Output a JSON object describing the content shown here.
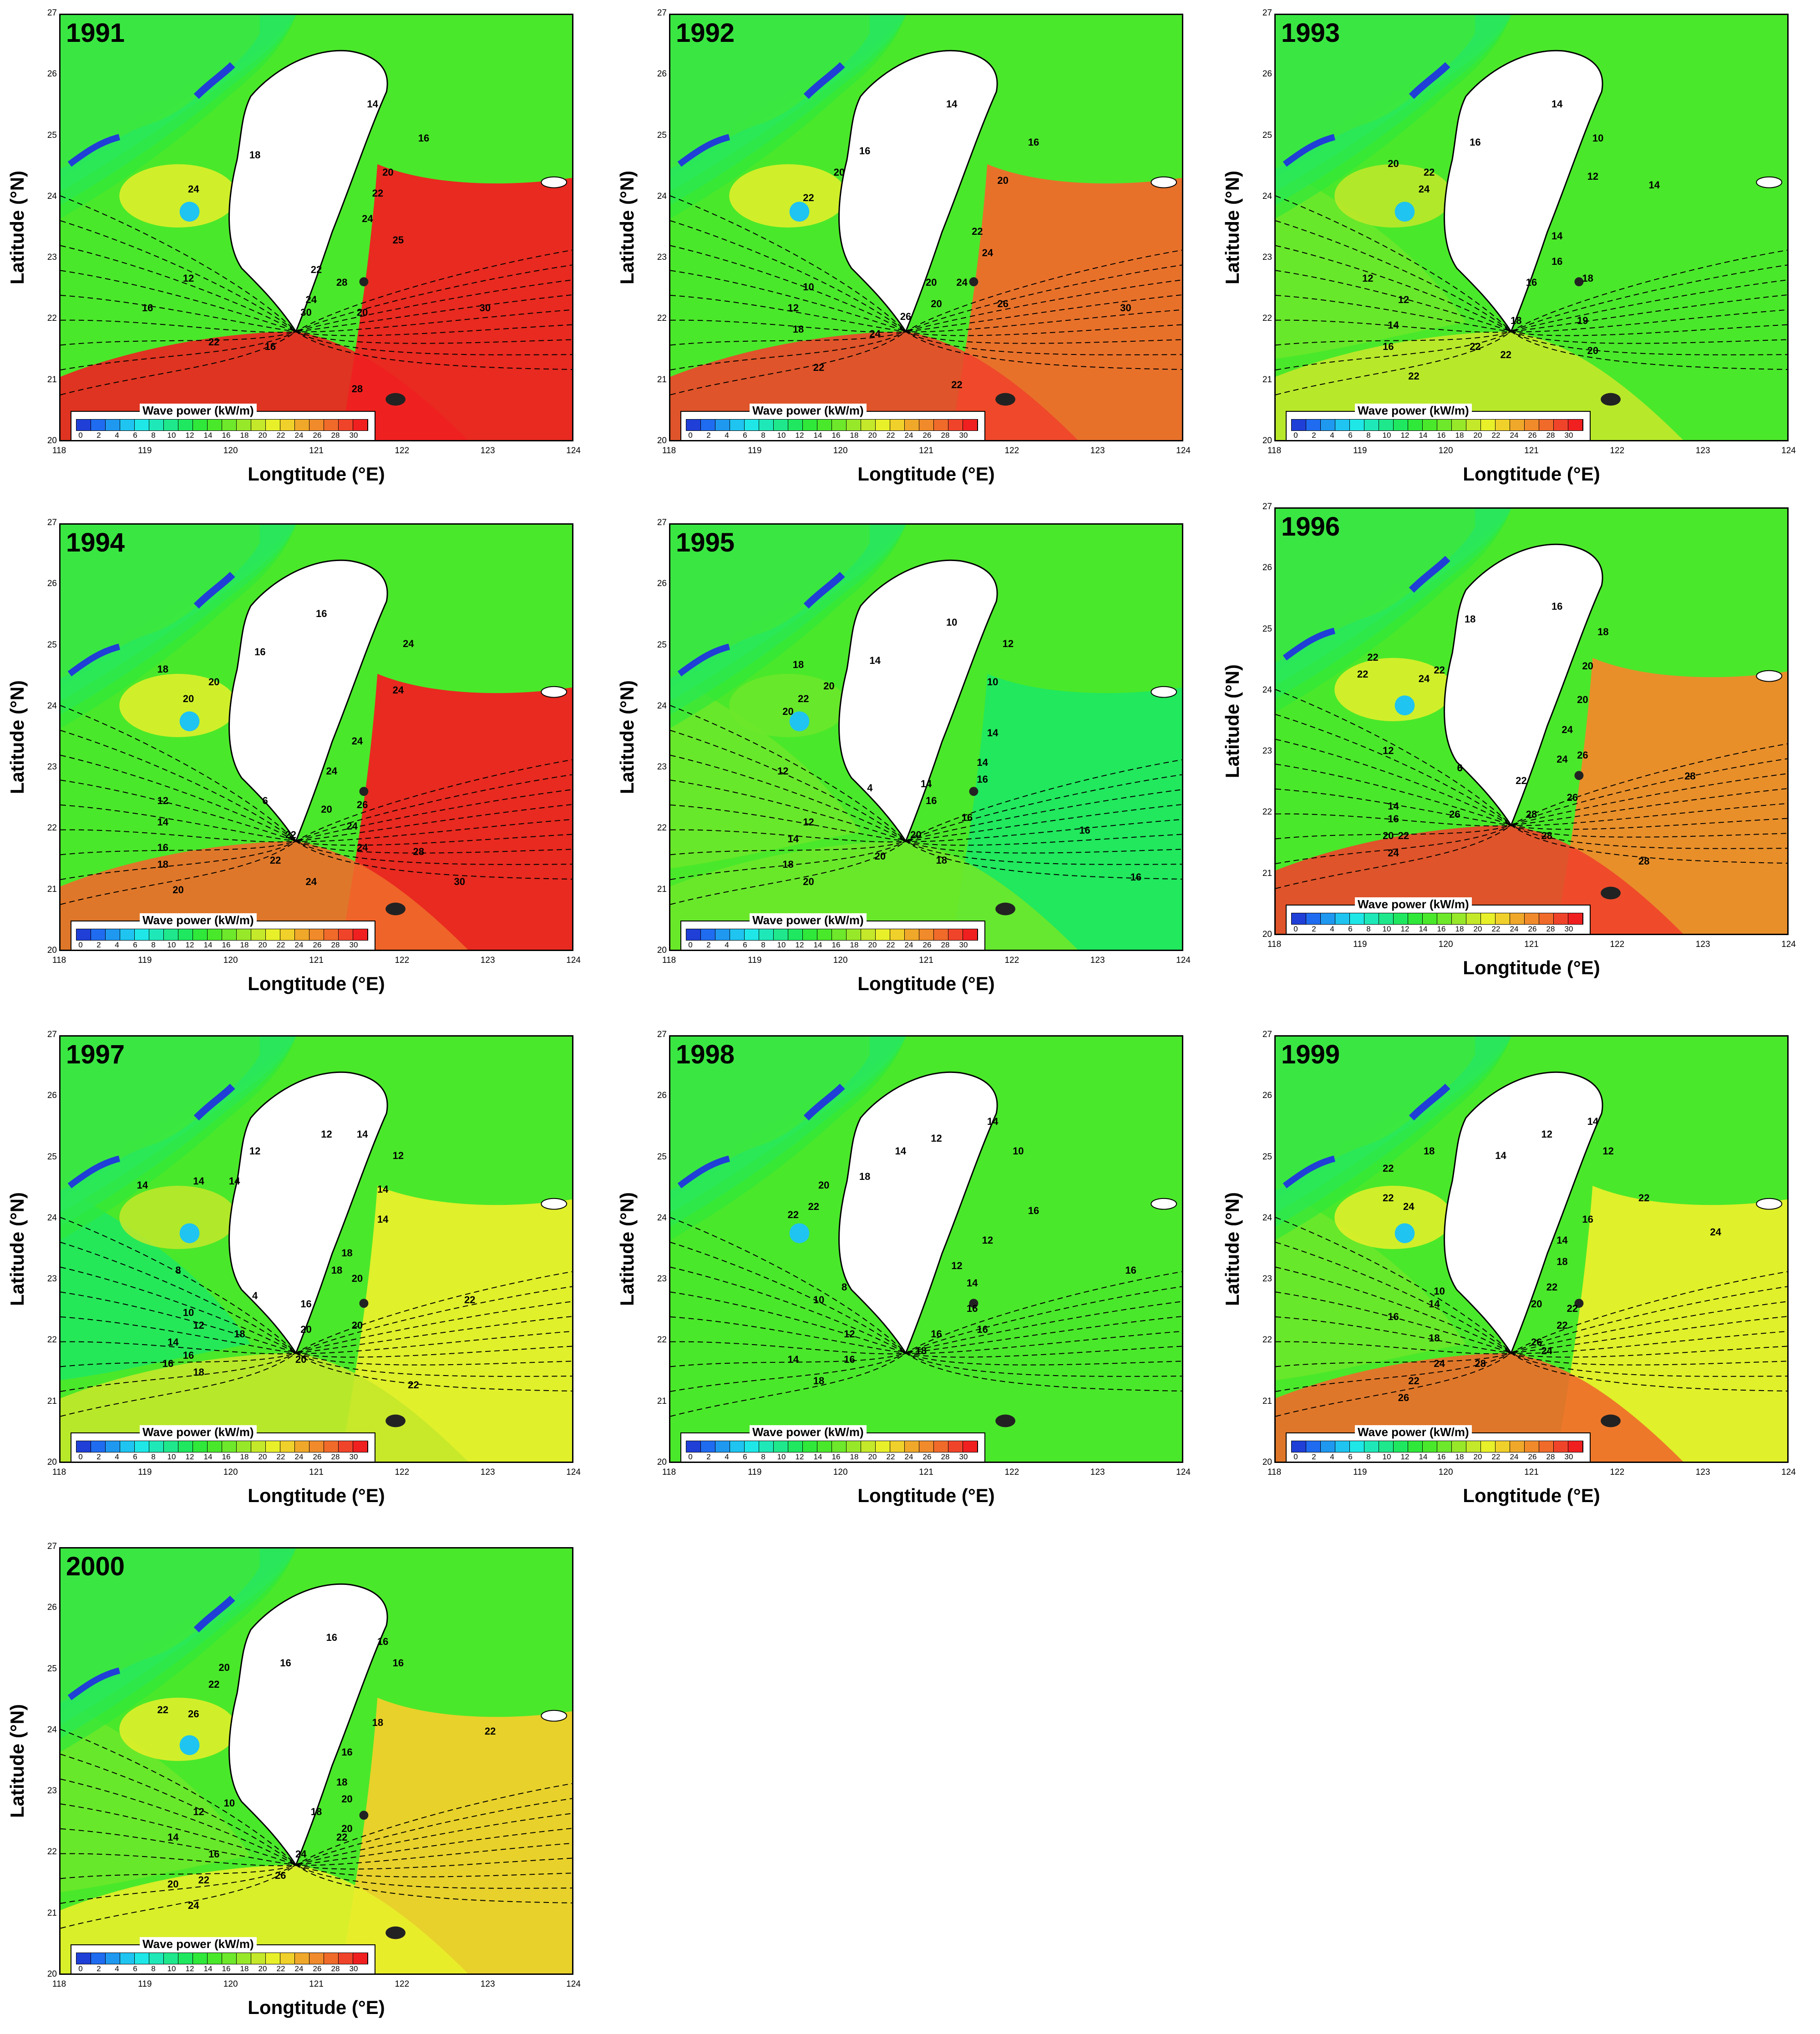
{
  "colors": {
    "scale": [
      "#1f3fd6",
      "#1f6cf0",
      "#1f98f0",
      "#1fc4f0",
      "#1fe7e7",
      "#1fe8b8",
      "#1fe88c",
      "#1fe860",
      "#2fe83a",
      "#4ae82a",
      "#6de82a",
      "#98e82a",
      "#c4e82a",
      "#e8f02a",
      "#f0d02a",
      "#f0a82a",
      "#f08a2a",
      "#f06a2a",
      "#f0442a",
      "#f02020"
    ],
    "land": "#ffffff",
    "coast_blue": "#1f3fd6"
  },
  "legend": {
    "title": "Wave power (kW/m)",
    "ticks": [
      "0",
      "2",
      "4",
      "6",
      "8",
      "10",
      "12",
      "14",
      "16",
      "18",
      "20",
      "22",
      "24",
      "26",
      "28",
      "30"
    ]
  },
  "axes": {
    "xlabel": "Longtitude (°E)",
    "ylabel": "Latitude (°N)",
    "xticks": [
      "118",
      "119",
      "120",
      "121",
      "122",
      "123",
      "124"
    ],
    "yticks": [
      "27",
      "26",
      "25",
      "24",
      "23",
      "22",
      "21",
      "20"
    ]
  },
  "panels": [
    {
      "year": "1991",
      "east_level": 19,
      "south_level": 19,
      "strait_level": 9,
      "labels": [
        [
          "14",
          "61%",
          "21%"
        ],
        [
          "16",
          "71%",
          "29%"
        ],
        [
          "18",
          "38%",
          "33%"
        ],
        [
          "20",
          "64%",
          "37%"
        ],
        [
          "24",
          "26%",
          "41%"
        ],
        [
          "22",
          "62%",
          "42%"
        ],
        [
          "24",
          "60%",
          "48%"
        ],
        [
          "25",
          "66%",
          "53%"
        ],
        [
          "22",
          "50%",
          "60%"
        ],
        [
          "28",
          "55%",
          "63%"
        ],
        [
          "24",
          "49%",
          "67%"
        ],
        [
          "20",
          "59%",
          "70%"
        ],
        [
          "30",
          "48%",
          "70%"
        ],
        [
          "30",
          "83%",
          "69%"
        ],
        [
          "12",
          "25%",
          "62%"
        ],
        [
          "16",
          "17%",
          "69%"
        ],
        [
          "22",
          "30%",
          "77%"
        ],
        [
          "16",
          "41%",
          "78%"
        ],
        [
          "28",
          "58%",
          "88%"
        ]
      ]
    },
    {
      "year": "1992",
      "east_level": 17,
      "south_level": 18,
      "strait_level": 9,
      "labels": [
        [
          "14",
          "55%",
          "21%"
        ],
        [
          "16",
          "71%",
          "30%"
        ],
        [
          "16",
          "38%",
          "32%"
        ],
        [
          "20",
          "33%",
          "37%"
        ],
        [
          "20",
          "65%",
          "39%"
        ],
        [
          "22",
          "27%",
          "43%"
        ],
        [
          "22",
          "60%",
          "51%"
        ],
        [
          "24",
          "62%",
          "56%"
        ],
        [
          "20",
          "51%",
          "63%"
        ],
        [
          "24",
          "57%",
          "63%"
        ],
        [
          "20",
          "52%",
          "68%"
        ],
        [
          "26",
          "65%",
          "68%"
        ],
        [
          "30",
          "89%",
          "69%"
        ],
        [
          "10",
          "27%",
          "64%"
        ],
        [
          "12",
          "24%",
          "69%"
        ],
        [
          "18",
          "25%",
          "74%"
        ],
        [
          "24",
          "40%",
          "75%"
        ],
        [
          "26",
          "46%",
          "71%"
        ],
        [
          "22",
          "29%",
          "83%"
        ],
        [
          "22",
          "56%",
          "87%"
        ]
      ]
    },
    {
      "year": "1993",
      "east_level": 9,
      "south_level": 12,
      "strait_level": 10,
      "labels": [
        [
          "14",
          "55%",
          "21%"
        ],
        [
          "10",
          "63%",
          "29%"
        ],
        [
          "16",
          "39%",
          "30%"
        ],
        [
          "20",
          "23%",
          "35%"
        ],
        [
          "22",
          "30%",
          "37%"
        ],
        [
          "24",
          "29%",
          "41%"
        ],
        [
          "12",
          "62%",
          "38%"
        ],
        [
          "14",
          "74%",
          "40%"
        ],
        [
          "14",
          "55%",
          "52%"
        ],
        [
          "16",
          "55%",
          "58%"
        ],
        [
          "18",
          "61%",
          "62%"
        ],
        [
          "16",
          "50%",
          "63%"
        ],
        [
          "12",
          "18%",
          "62%"
        ],
        [
          "12",
          "25%",
          "67%"
        ],
        [
          "14",
          "23%",
          "73%"
        ],
        [
          "18",
          "47%",
          "72%"
        ],
        [
          "16",
          "22%",
          "78%"
        ],
        [
          "22",
          "39%",
          "78%"
        ],
        [
          "22",
          "45%",
          "80%"
        ],
        [
          "19",
          "60%",
          "72%"
        ],
        [
          "20",
          "62%",
          "79%"
        ],
        [
          "22",
          "27%",
          "85%"
        ]
      ]
    },
    {
      "year": "1994",
      "east_level": 19,
      "south_level": 17,
      "strait_level": 9,
      "labels": [
        [
          "16",
          "51%",
          "21%"
        ],
        [
          "16",
          "39%",
          "30%"
        ],
        [
          "24",
          "68%",
          "28%"
        ],
        [
          "18",
          "20%",
          "34%"
        ],
        [
          "20",
          "30%",
          "37%"
        ],
        [
          "20",
          "25%",
          "41%"
        ],
        [
          "24",
          "66%",
          "39%"
        ],
        [
          "24",
          "58%",
          "51%"
        ],
        [
          "24",
          "53%",
          "58%"
        ],
        [
          "20",
          "52%",
          "67%"
        ],
        [
          "26",
          "59%",
          "66%"
        ],
        [
          "22",
          "45%",
          "73%"
        ],
        [
          "24",
          "57%",
          "71%"
        ],
        [
          "24",
          "59%",
          "76%"
        ],
        [
          "28",
          "70%",
          "77%"
        ],
        [
          "30",
          "78%",
          "84%"
        ],
        [
          "12",
          "20%",
          "65%"
        ],
        [
          "14",
          "20%",
          "70%"
        ],
        [
          "16",
          "20%",
          "76%"
        ],
        [
          "18",
          "20%",
          "80%"
        ],
        [
          "20",
          "23%",
          "86%"
        ],
        [
          "6",
          "40%",
          "65%"
        ],
        [
          "24",
          "49%",
          "84%"
        ],
        [
          "22",
          "42%",
          "79%"
        ]
      ]
    },
    {
      "year": "1995",
      "east_level": 7,
      "south_level": 10,
      "strait_level": 10,
      "labels": [
        [
          "10",
          "55%",
          "23%"
        ],
        [
          "12",
          "66%",
          "28%"
        ],
        [
          "10",
          "63%",
          "37%"
        ],
        [
          "14",
          "40%",
          "32%"
        ],
        [
          "18",
          "25%",
          "33%"
        ],
        [
          "20",
          "31%",
          "38%"
        ],
        [
          "22",
          "26%",
          "41%"
        ],
        [
          "20",
          "23%",
          "44%"
        ],
        [
          "14",
          "63%",
          "49%"
        ],
        [
          "14",
          "61%",
          "56%"
        ],
        [
          "16",
          "61%",
          "60%"
        ],
        [
          "16",
          "58%",
          "69%"
        ],
        [
          "14",
          "50%",
          "61%"
        ],
        [
          "16",
          "51%",
          "65%"
        ],
        [
          "12",
          "22%",
          "58%"
        ],
        [
          "4",
          "39%",
          "62%"
        ],
        [
          "12",
          "27%",
          "70%"
        ],
        [
          "14",
          "24%",
          "74%"
        ],
        [
          "18",
          "23%",
          "80%"
        ],
        [
          "20",
          "27%",
          "84%"
        ],
        [
          "20",
          "41%",
          "78%"
        ],
        [
          "20",
          "48%",
          "73%"
        ],
        [
          "18",
          "53%",
          "79%"
        ],
        [
          "16",
          "81%",
          "72%"
        ],
        [
          "16",
          "91%",
          "83%"
        ]
      ]
    },
    {
      "year": "1996",
      "east_level": 16,
      "south_level": 18,
      "strait_level": 9,
      "labels": [
        [
          "16",
          "55%",
          "23%"
        ],
        [
          "18",
          "38%",
          "26%"
        ],
        [
          "18",
          "64%",
          "29%"
        ],
        [
          "22",
          "19%",
          "35%"
        ],
        [
          "24",
          "29%",
          "40%"
        ],
        [
          "22",
          "32%",
          "38%"
        ],
        [
          "22",
          "17%",
          "39%"
        ],
        [
          "20",
          "61%",
          "37%"
        ],
        [
          "20",
          "60%",
          "45%"
        ],
        [
          "24",
          "57%",
          "52%"
        ],
        [
          "24",
          "56%",
          "59%"
        ],
        [
          "26",
          "60%",
          "58%"
        ],
        [
          "22",
          "48%",
          "64%"
        ],
        [
          "26",
          "58%",
          "68%"
        ],
        [
          "28",
          "81%",
          "63%"
        ],
        [
          "28",
          "50%",
          "72%"
        ],
        [
          "28",
          "53%",
          "77%"
        ],
        [
          "28",
          "72%",
          "83%"
        ],
        [
          "12",
          "22%",
          "57%"
        ],
        [
          "6",
          "36%",
          "61%"
        ],
        [
          "14",
          "23%",
          "70%"
        ],
        [
          "16",
          "23%",
          "73%"
        ],
        [
          "20",
          "22%",
          "77%"
        ],
        [
          "22",
          "25%",
          "77%"
        ],
        [
          "26",
          "35%",
          "72%"
        ],
        [
          "24",
          "23%",
          "81%"
        ]
      ]
    },
    {
      "year": "1997",
      "east_level": 13,
      "south_level": 12,
      "strait_level": 7,
      "labels": [
        [
          "12",
          "52%",
          "23%"
        ],
        [
          "14",
          "59%",
          "23%"
        ],
        [
          "12",
          "38%",
          "27%"
        ],
        [
          "12",
          "66%",
          "28%"
        ],
        [
          "14",
          "16%",
          "35%"
        ],
        [
          "14",
          "27%",
          "34%"
        ],
        [
          "14",
          "34%",
          "34%"
        ],
        [
          "14",
          "63%",
          "36%"
        ],
        [
          "14",
          "63%",
          "43%"
        ],
        [
          "18",
          "56%",
          "51%"
        ],
        [
          "18",
          "54%",
          "55%"
        ],
        [
          "20",
          "58%",
          "57%"
        ],
        [
          "16",
          "48%",
          "63%"
        ],
        [
          "20",
          "48%",
          "69%"
        ],
        [
          "20",
          "58%",
          "68%"
        ],
        [
          "4",
          "38%",
          "61%"
        ],
        [
          "8",
          "23%",
          "55%"
        ],
        [
          "10",
          "25%",
          "65%"
        ],
        [
          "12",
          "27%",
          "68%"
        ],
        [
          "14",
          "22%",
          "72%"
        ],
        [
          "16",
          "25%",
          "75%"
        ],
        [
          "16",
          "21%",
          "77%"
        ],
        [
          "18",
          "27%",
          "79%"
        ],
        [
          "18",
          "35%",
          "70%"
        ],
        [
          "20",
          "47%",
          "76%"
        ],
        [
          "22",
          "69%",
          "82%"
        ],
        [
          "22",
          "80%",
          "62%"
        ]
      ]
    },
    {
      "year": "1998",
      "east_level": 9,
      "south_level": 9,
      "strait_level": 9,
      "labels": [
        [
          "12",
          "52%",
          "24%"
        ],
        [
          "14",
          "63%",
          "20%"
        ],
        [
          "10",
          "68%",
          "27%"
        ],
        [
          "14",
          "45%",
          "27%"
        ],
        [
          "18",
          "38%",
          "33%"
        ],
        [
          "20",
          "30%",
          "35%"
        ],
        [
          "22",
          "28%",
          "40%"
        ],
        [
          "22",
          "24%",
          "42%"
        ],
        [
          "16",
          "71%",
          "41%"
        ],
        [
          "12",
          "62%",
          "48%"
        ],
        [
          "12",
          "56%",
          "54%"
        ],
        [
          "14",
          "59%",
          "58%"
        ],
        [
          "16",
          "59%",
          "64%"
        ],
        [
          "16",
          "61%",
          "69%"
        ],
        [
          "16",
          "90%",
          "55%"
        ],
        [
          "8",
          "34%",
          "59%"
        ],
        [
          "10",
          "29%",
          "62%"
        ],
        [
          "12",
          "35%",
          "70%"
        ],
        [
          "14",
          "24%",
          "76%"
        ],
        [
          "16",
          "35%",
          "76%"
        ],
        [
          "18",
          "29%",
          "81%"
        ],
        [
          "16",
          "52%",
          "70%"
        ],
        [
          "18",
          "49%",
          "74%"
        ]
      ]
    },
    {
      "year": "1999",
      "east_level": 13,
      "south_level": 17,
      "strait_level": 10,
      "labels": [
        [
          "12",
          "53%",
          "23%"
        ],
        [
          "14",
          "62%",
          "20%"
        ],
        [
          "12",
          "65%",
          "27%"
        ],
        [
          "18",
          "30%",
          "27%"
        ],
        [
          "14",
          "44%",
          "28%"
        ],
        [
          "22",
          "22%",
          "31%"
        ],
        [
          "22",
          "22%",
          "38%"
        ],
        [
          "24",
          "26%",
          "40%"
        ],
        [
          "22",
          "72%",
          "38%"
        ],
        [
          "24",
          "86%",
          "46%"
        ],
        [
          "16",
          "61%",
          "43%"
        ],
        [
          "14",
          "56%",
          "48%"
        ],
        [
          "18",
          "56%",
          "53%"
        ],
        [
          "22",
          "54%",
          "59%"
        ],
        [
          "20",
          "51%",
          "63%"
        ],
        [
          "22",
          "58%",
          "64%"
        ],
        [
          "22",
          "56%",
          "68%"
        ],
        [
          "26",
          "51%",
          "72%"
        ],
        [
          "24",
          "53%",
          "74%"
        ],
        [
          "16",
          "23%",
          "66%"
        ],
        [
          "14",
          "31%",
          "63%"
        ],
        [
          "10",
          "32%",
          "60%"
        ],
        [
          "18",
          "31%",
          "71%"
        ],
        [
          "24",
          "32%",
          "77%"
        ],
        [
          "28",
          "40%",
          "77%"
        ],
        [
          "22",
          "27%",
          "81%"
        ],
        [
          "26",
          "25%",
          "85%"
        ]
      ]
    },
    {
      "year": "2000",
      "east_level": 14,
      "south_level": 13,
      "strait_level": 10,
      "labels": [
        [
          "16",
          "53%",
          "21%"
        ],
        [
          "16",
          "63%",
          "22%"
        ],
        [
          "16",
          "44%",
          "27%"
        ],
        [
          "16",
          "66%",
          "27%"
        ],
        [
          "20",
          "32%",
          "28%"
        ],
        [
          "22",
          "30%",
          "32%"
        ],
        [
          "22",
          "20%",
          "38%"
        ],
        [
          "26",
          "26%",
          "39%"
        ],
        [
          "18",
          "62%",
          "41%"
        ],
        [
          "22",
          "84%",
          "43%"
        ],
        [
          "16",
          "56%",
          "48%"
        ],
        [
          "18",
          "55%",
          "55%"
        ],
        [
          "20",
          "56%",
          "59%"
        ],
        [
          "18",
          "50%",
          "62%"
        ],
        [
          "22",
          "55%",
          "68%"
        ],
        [
          "20",
          "56%",
          "66%"
        ],
        [
          "12",
          "27%",
          "62%"
        ],
        [
          "10",
          "33%",
          "60%"
        ],
        [
          "14",
          "22%",
          "68%"
        ],
        [
          "16",
          "30%",
          "72%"
        ],
        [
          "20",
          "22%",
          "79%"
        ],
        [
          "22",
          "28%",
          "78%"
        ],
        [
          "26",
          "43%",
          "77%"
        ],
        [
          "24",
          "47%",
          "72%"
        ],
        [
          "24",
          "26%",
          "84%"
        ]
      ]
    }
  ]
}
